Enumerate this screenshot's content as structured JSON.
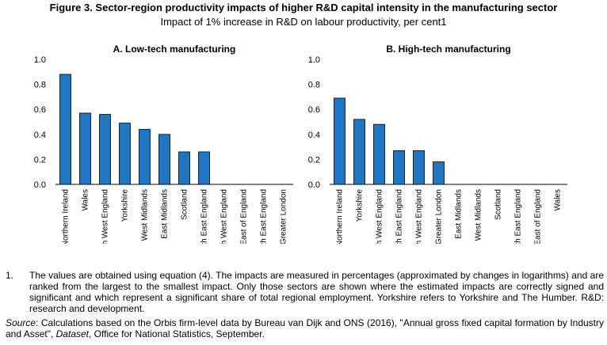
{
  "figure": {
    "title": "Figure 3. Sector-region productivity impacts of higher R&D capital intensity in the manufacturing sector",
    "subtitle": "Impact of 1% increase in R&D on labour productivity, per cent1"
  },
  "chart_data": [
    {
      "type": "bar",
      "title": "A. Low-tech manufacturing",
      "categories": [
        "Northern Ireland",
        "Wales",
        "North West England",
        "Yorkshire",
        "West Midlands",
        "East Midlands",
        "Scotland",
        "South East England",
        "South West England",
        "East of England",
        "North East England",
        "Greater London"
      ],
      "values": [
        0.88,
        0.57,
        0.56,
        0.49,
        0.44,
        0.4,
        0.26,
        0.26,
        0,
        0,
        0,
        0
      ],
      "ylim": [
        0,
        1.0
      ],
      "yticks": [
        "0.0",
        "0.2",
        "0.4",
        "0.6",
        "0.8",
        "1.0"
      ],
      "color": "#1f77c4",
      "xlabel": "",
      "ylabel": "",
      "grid": false,
      "legend": "none"
    },
    {
      "type": "bar",
      "title": "B. High-tech manufacturing",
      "categories": [
        "Northern Ireland",
        "Yorkshire",
        "North West England",
        "South East England",
        "South West England",
        "Greater London",
        "East Midlands",
        "West Midlands",
        "Scotland",
        "North East England",
        "East of England",
        "Wales"
      ],
      "values": [
        0.69,
        0.52,
        0.48,
        0.27,
        0.27,
        0.18,
        0,
        0,
        0,
        0,
        0,
        0
      ],
      "ylim": [
        0,
        1.0
      ],
      "yticks": [
        "0.0",
        "0.2",
        "0.4",
        "0.6",
        "0.8",
        "1.0"
      ],
      "color": "#1f77c4",
      "xlabel": "",
      "ylabel": "",
      "grid": false,
      "legend": "none"
    }
  ],
  "notes": {
    "number": "1.",
    "text": "The values are obtained using equation (4). The impacts are measured in percentages (approximated by changes in logarithms) and are ranked from the largest to the smallest impact. Only those sectors are shown where the estimated impacts are correctly signed and significant and which represent a significant share of total regional employment. Yorkshire refers to Yorkshire and The Humber. R&D: research and development.",
    "source_label": "Source",
    "source_text_1": ": Calculations based on the Orbis firm-level data by Bureau van Dijk and ONS (2016), \"Annual gross fixed capital formation by Industry and Asset\", ",
    "source_italic": "Dataset",
    "source_text_2": ", Office for National Statistics, September."
  }
}
